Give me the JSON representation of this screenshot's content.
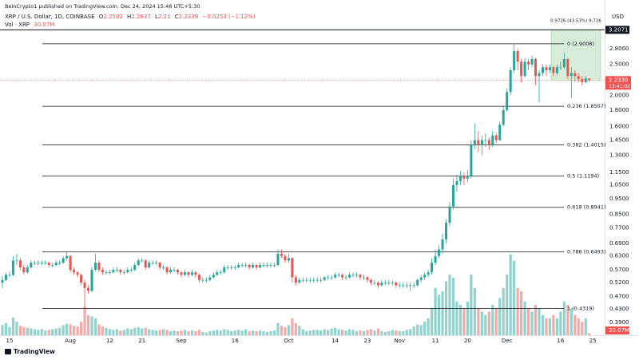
{
  "header": {
    "publisher": "BeInCrypto1 published on TradingView.com, Dec 24, 2024 15:48 UTC+5:30",
    "brand": "TradingView"
  },
  "chart_data": {
    "type": "candlestick",
    "symbol": "XRP / U.S. Dollar, 1D, COINBASE",
    "ohlc_labels": [
      "O",
      "H",
      "L",
      "C"
    ],
    "change": "−0.0253 (−1.12%)",
    "currency": "USD",
    "countdown": "13:41:02",
    "log_scale": true,
    "grid": false,
    "up_color": "#26a69a",
    "down_color": "#ef5350",
    "ylim": [
      0.356,
      3.385
    ],
    "yticks": [
      {
        "value": 2.8,
        "label": "2.8000"
      },
      {
        "value": 2.5,
        "label": "2.5000"
      },
      {
        "value": 2.0,
        "label": "2.0000"
      },
      {
        "value": 1.8,
        "label": "1.8000"
      },
      {
        "value": 1.6,
        "label": "1.6000"
      },
      {
        "value": 1.45,
        "label": "1.4500"
      },
      {
        "value": 1.3,
        "label": "1.3000"
      },
      {
        "value": 1.15,
        "label": "1.1500"
      },
      {
        "value": 1.05,
        "label": "1.0500"
      },
      {
        "value": 0.95,
        "label": "0.9500"
      },
      {
        "value": 0.85,
        "label": "0.8500"
      },
      {
        "value": 0.77,
        "label": "0.7700"
      },
      {
        "value": 0.69,
        "label": "0.6900"
      },
      {
        "value": 0.63,
        "label": "0.6300"
      },
      {
        "value": 0.57,
        "label": "0.5700"
      },
      {
        "value": 0.52,
        "label": "0.5200"
      },
      {
        "value": 0.47,
        "label": "0.4700"
      },
      {
        "value": 0.43,
        "label": "0.4300"
      },
      {
        "value": 0.39,
        "label": "0.3900"
      }
    ],
    "fib_levels": [
      {
        "value": 2.9008,
        "label": "0 (2.9008)"
      },
      {
        "value": 1.8507,
        "label": "0.236 (1.8507)"
      },
      {
        "value": 1.4015,
        "label": "0.382 (1.4015)"
      },
      {
        "value": 1.1194,
        "label": "0.5 (1.1194)"
      },
      {
        "value": 0.8941,
        "label": "0.618 (0.8941)"
      },
      {
        "value": 0.6493,
        "label": "0.786 (0.6493)"
      },
      {
        "value": 0.4319,
        "label": "1 (0.4319)"
      }
    ],
    "measure": {
      "top": 3.2071,
      "bottom": 2.2345,
      "label": "0.9726 (43.53%) 9,726"
    },
    "categories": [
      null,
      null,
      "15",
      null,
      null,
      null,
      null,
      null,
      null,
      null,
      null,
      null,
      null,
      null,
      null,
      null,
      null,
      null,
      null,
      "Aug",
      null,
      null,
      null,
      null,
      null,
      null,
      null,
      null,
      null,
      null,
      "12",
      null,
      null,
      null,
      null,
      null,
      null,
      null,
      null,
      "21",
      null,
      null,
      null,
      null,
      null,
      null,
      null,
      null,
      null,
      null,
      "Sep",
      null,
      null,
      null,
      null,
      null,
      null,
      null,
      null,
      null,
      null,
      null,
      null,
      null,
      null,
      "16",
      null,
      null,
      null,
      null,
      null,
      null,
      null,
      null,
      null,
      null,
      null,
      null,
      null,
      null,
      "Oct",
      null,
      null,
      null,
      null,
      null,
      null,
      null,
      null,
      null,
      null,
      null,
      null,
      "14",
      null,
      null,
      null,
      null,
      null,
      null,
      null,
      null,
      "23",
      null,
      null,
      null,
      null,
      null,
      null,
      null,
      null,
      "Nov",
      null,
      null,
      null,
      null,
      null,
      null,
      null,
      null,
      null,
      "11",
      null,
      null,
      null,
      null,
      null,
      null,
      null,
      null,
      "20",
      null,
      null,
      null,
      null,
      null,
      null,
      null,
      null,
      null,
      null,
      "Dec",
      null,
      null,
      null,
      null,
      null,
      null,
      null,
      null,
      null,
      null,
      null,
      null,
      null,
      null,
      "16",
      null,
      null,
      null,
      null,
      null,
      null,
      null,
      null,
      "25"
    ],
    "candles": [
      [
        0.52,
        0.545,
        0.5,
        0.53
      ],
      [
        0.53,
        0.56,
        0.525,
        0.55
      ],
      [
        0.55,
        0.565,
        0.54,
        0.55
      ],
      [
        0.55,
        0.63,
        0.545,
        0.61
      ],
      [
        0.61,
        0.64,
        0.59,
        0.61
      ],
      [
        0.61,
        0.62,
        0.57,
        0.58
      ],
      [
        0.58,
        0.59,
        0.55,
        0.56
      ],
      [
        0.56,
        0.59,
        0.555,
        0.58
      ],
      [
        0.58,
        0.61,
        0.575,
        0.6
      ],
      [
        0.6,
        0.61,
        0.59,
        0.6
      ],
      [
        0.6,
        0.61,
        0.59,
        0.6
      ],
      [
        0.6,
        0.61,
        0.59,
        0.6
      ],
      [
        0.6,
        0.61,
        0.59,
        0.6
      ],
      [
        0.6,
        0.605,
        0.58,
        0.59
      ],
      [
        0.59,
        0.6,
        0.58,
        0.59
      ],
      [
        0.59,
        0.61,
        0.585,
        0.6
      ],
      [
        0.6,
        0.61,
        0.59,
        0.6
      ],
      [
        0.6,
        0.63,
        0.595,
        0.62
      ],
      [
        0.62,
        0.65,
        0.61,
        0.63
      ],
      [
        0.63,
        0.635,
        0.56,
        0.57
      ],
      [
        0.57,
        0.58,
        0.55,
        0.56
      ],
      [
        0.56,
        0.565,
        0.54,
        0.55
      ],
      [
        0.55,
        0.555,
        0.51,
        0.52
      ],
      [
        0.52,
        0.53,
        0.43,
        0.5
      ],
      [
        0.5,
        0.51,
        0.48,
        0.49
      ],
      [
        0.49,
        0.58,
        0.485,
        0.57
      ],
      [
        0.57,
        0.64,
        0.565,
        0.6
      ],
      [
        0.6,
        0.61,
        0.56,
        0.57
      ],
      [
        0.57,
        0.58,
        0.55,
        0.56
      ],
      [
        0.56,
        0.57,
        0.55,
        0.56
      ],
      [
        0.56,
        0.57,
        0.55,
        0.56
      ],
      [
        0.56,
        0.58,
        0.555,
        0.57
      ],
      [
        0.57,
        0.58,
        0.56,
        0.57
      ],
      [
        0.57,
        0.575,
        0.55,
        0.56
      ],
      [
        0.56,
        0.57,
        0.55,
        0.56
      ],
      [
        0.56,
        0.58,
        0.555,
        0.57
      ],
      [
        0.57,
        0.58,
        0.56,
        0.57
      ],
      [
        0.57,
        0.6,
        0.565,
        0.59
      ],
      [
        0.59,
        0.62,
        0.585,
        0.61
      ],
      [
        0.61,
        0.62,
        0.6,
        0.61
      ],
      [
        0.61,
        0.615,
        0.57,
        0.58
      ],
      [
        0.58,
        0.61,
        0.575,
        0.6
      ],
      [
        0.6,
        0.61,
        0.59,
        0.6
      ],
      [
        0.6,
        0.61,
        0.59,
        0.6
      ],
      [
        0.6,
        0.605,
        0.57,
        0.58
      ],
      [
        0.58,
        0.59,
        0.57,
        0.58
      ],
      [
        0.58,
        0.585,
        0.55,
        0.56
      ],
      [
        0.56,
        0.58,
        0.555,
        0.57
      ],
      [
        0.57,
        0.58,
        0.56,
        0.57
      ],
      [
        0.57,
        0.575,
        0.55,
        0.56
      ],
      [
        0.56,
        0.565,
        0.54,
        0.55
      ],
      [
        0.55,
        0.57,
        0.545,
        0.56
      ],
      [
        0.56,
        0.565,
        0.54,
        0.55
      ],
      [
        0.55,
        0.57,
        0.545,
        0.56
      ],
      [
        0.56,
        0.565,
        0.54,
        0.55
      ],
      [
        0.55,
        0.555,
        0.52,
        0.53
      ],
      [
        0.53,
        0.54,
        0.52,
        0.53
      ],
      [
        0.53,
        0.54,
        0.52,
        0.53
      ],
      [
        0.53,
        0.55,
        0.525,
        0.54
      ],
      [
        0.54,
        0.56,
        0.535,
        0.55
      ],
      [
        0.55,
        0.57,
        0.545,
        0.56
      ],
      [
        0.56,
        0.57,
        0.55,
        0.56
      ],
      [
        0.56,
        0.59,
        0.555,
        0.58
      ],
      [
        0.58,
        0.59,
        0.57,
        0.58
      ],
      [
        0.58,
        0.59,
        0.57,
        0.58
      ],
      [
        0.58,
        0.59,
        0.57,
        0.58
      ],
      [
        0.58,
        0.6,
        0.575,
        0.59
      ],
      [
        0.59,
        0.6,
        0.58,
        0.59
      ],
      [
        0.59,
        0.6,
        0.58,
        0.59
      ],
      [
        0.59,
        0.595,
        0.57,
        0.58
      ],
      [
        0.58,
        0.6,
        0.575,
        0.59
      ],
      [
        0.59,
        0.595,
        0.57,
        0.58
      ],
      [
        0.58,
        0.6,
        0.575,
        0.59
      ],
      [
        0.59,
        0.6,
        0.58,
        0.59
      ],
      [
        0.59,
        0.6,
        0.58,
        0.59
      ],
      [
        0.59,
        0.6,
        0.58,
        0.59
      ],
      [
        0.59,
        0.6,
        0.58,
        0.59
      ],
      [
        0.59,
        0.66,
        0.585,
        0.64
      ],
      [
        0.64,
        0.66,
        0.62,
        0.63
      ],
      [
        0.63,
        0.64,
        0.6,
        0.61
      ],
      [
        0.61,
        0.64,
        0.6,
        0.62
      ],
      [
        0.62,
        0.625,
        0.52,
        0.54
      ],
      [
        0.54,
        0.55,
        0.51,
        0.52
      ],
      [
        0.52,
        0.54,
        0.515,
        0.53
      ],
      [
        0.53,
        0.54,
        0.52,
        0.53
      ],
      [
        0.53,
        0.54,
        0.52,
        0.53
      ],
      [
        0.53,
        0.54,
        0.52,
        0.53
      ],
      [
        0.53,
        0.54,
        0.52,
        0.53
      ],
      [
        0.53,
        0.54,
        0.52,
        0.53
      ],
      [
        0.53,
        0.54,
        0.52,
        0.53
      ],
      [
        0.53,
        0.545,
        0.525,
        0.54
      ],
      [
        0.54,
        0.55,
        0.53,
        0.54
      ],
      [
        0.54,
        0.55,
        0.53,
        0.54
      ],
      [
        0.54,
        0.56,
        0.535,
        0.55
      ],
      [
        0.55,
        0.56,
        0.54,
        0.55
      ],
      [
        0.55,
        0.555,
        0.53,
        0.54
      ],
      [
        0.54,
        0.55,
        0.53,
        0.54
      ],
      [
        0.54,
        0.56,
        0.535,
        0.55
      ],
      [
        0.55,
        0.56,
        0.54,
        0.55
      ],
      [
        0.55,
        0.56,
        0.54,
        0.55
      ],
      [
        0.55,
        0.555,
        0.53,
        0.54
      ],
      [
        0.54,
        0.55,
        0.53,
        0.54
      ],
      [
        0.54,
        0.545,
        0.52,
        0.53
      ],
      [
        0.53,
        0.535,
        0.51,
        0.52
      ],
      [
        0.52,
        0.53,
        0.51,
        0.52
      ],
      [
        0.52,
        0.525,
        0.5,
        0.51
      ],
      [
        0.51,
        0.53,
        0.505,
        0.52
      ],
      [
        0.52,
        0.53,
        0.51,
        0.52
      ],
      [
        0.52,
        0.53,
        0.51,
        0.52
      ],
      [
        0.52,
        0.53,
        0.51,
        0.52
      ],
      [
        0.52,
        0.525,
        0.5,
        0.51
      ],
      [
        0.51,
        0.52,
        0.5,
        0.51
      ],
      [
        0.51,
        0.52,
        0.5,
        0.51
      ],
      [
        0.51,
        0.52,
        0.5,
        0.51
      ],
      [
        0.51,
        0.52,
        0.49,
        0.51
      ],
      [
        0.51,
        0.52,
        0.5,
        0.51
      ],
      [
        0.51,
        0.535,
        0.505,
        0.53
      ],
      [
        0.53,
        0.55,
        0.52,
        0.54
      ],
      [
        0.54,
        0.56,
        0.53,
        0.55
      ],
      [
        0.55,
        0.57,
        0.54,
        0.56
      ],
      [
        0.56,
        0.62,
        0.55,
        0.6
      ],
      [
        0.6,
        0.66,
        0.59,
        0.63
      ],
      [
        0.63,
        0.68,
        0.62,
        0.66
      ],
      [
        0.66,
        0.74,
        0.64,
        0.71
      ],
      [
        0.71,
        0.82,
        0.69,
        0.8
      ],
      [
        0.8,
        0.93,
        0.78,
        0.9
      ],
      [
        0.9,
        1.1,
        0.88,
        1.05
      ],
      [
        1.05,
        1.13,
        1.0,
        1.08
      ],
      [
        1.08,
        1.16,
        1.05,
        1.12
      ],
      [
        1.12,
        1.15,
        1.05,
        1.1
      ],
      [
        1.1,
        1.17,
        1.07,
        1.12
      ],
      [
        1.12,
        1.45,
        1.1,
        1.4
      ],
      [
        1.4,
        1.63,
        1.36,
        1.45
      ],
      [
        1.45,
        1.55,
        1.33,
        1.4
      ],
      [
        1.4,
        1.5,
        1.3,
        1.45
      ],
      [
        1.45,
        1.52,
        1.38,
        1.45
      ],
      [
        1.45,
        1.48,
        1.35,
        1.4
      ],
      [
        1.4,
        1.55,
        1.38,
        1.5
      ],
      [
        1.5,
        1.53,
        1.42,
        1.45
      ],
      [
        1.45,
        1.66,
        1.44,
        1.62
      ],
      [
        1.62,
        1.85,
        1.6,
        1.8
      ],
      [
        1.8,
        2.1,
        1.78,
        2.05
      ],
      [
        2.05,
        2.45,
        2.0,
        2.4
      ],
      [
        2.4,
        2.9,
        2.35,
        2.75
      ],
      [
        2.75,
        2.8,
        2.4,
        2.55
      ],
      [
        2.55,
        2.6,
        2.2,
        2.3
      ],
      [
        2.3,
        2.62,
        2.28,
        2.55
      ],
      [
        2.55,
        2.6,
        2.4,
        2.5
      ],
      [
        2.5,
        2.66,
        2.45,
        2.6
      ],
      [
        2.6,
        2.62,
        2.15,
        2.3
      ],
      [
        2.3,
        2.4,
        1.9,
        2.35
      ],
      [
        2.35,
        2.5,
        2.3,
        2.45
      ],
      [
        2.45,
        2.5,
        2.3,
        2.4
      ],
      [
        2.4,
        2.5,
        2.35,
        2.45
      ],
      [
        2.45,
        2.48,
        2.3,
        2.35
      ],
      [
        2.35,
        2.5,
        2.32,
        2.45
      ],
      [
        2.45,
        2.55,
        2.4,
        2.45
      ],
      [
        2.45,
        2.72,
        2.42,
        2.6
      ],
      [
        2.6,
        2.62,
        2.25,
        2.3
      ],
      [
        2.3,
        2.45,
        1.96,
        2.35
      ],
      [
        2.35,
        2.4,
        2.2,
        2.3
      ],
      [
        2.3,
        2.35,
        2.2,
        2.25
      ],
      [
        2.25,
        2.3,
        2.15,
        2.2
      ],
      [
        2.2,
        2.3,
        2.18,
        2.2592
      ],
      [
        2.2592,
        2.2637,
        2.21,
        2.2339
      ],
      null
    ],
    "volume": {
      "name": "Vol · XRP",
      "last_label": "30.07M",
      "vlim": [
        0,
        1300
      ],
      "values": [
        150,
        180,
        120,
        260,
        200,
        140,
        120,
        110,
        100,
        90,
        80,
        90,
        70,
        80,
        90,
        100,
        110,
        150,
        170,
        160,
        140,
        130,
        200,
        420,
        300,
        280,
        250,
        160,
        130,
        110,
        90,
        80,
        90,
        70,
        80,
        100,
        90,
        110,
        120,
        100,
        110,
        90,
        80,
        70,
        80,
        90,
        80,
        60,
        70,
        60,
        70,
        80,
        60,
        70,
        60,
        80,
        50,
        40,
        60,
        70,
        80,
        70,
        90,
        80,
        60,
        70,
        80,
        70,
        90,
        60,
        70,
        60,
        70,
        60,
        50,
        60,
        70,
        180,
        140,
        120,
        150,
        250,
        180,
        140,
        90,
        60,
        70,
        80,
        80,
        70,
        90,
        80,
        100,
        110,
        90,
        80,
        70,
        90,
        80,
        60,
        70,
        60,
        80,
        90,
        70,
        100,
        60,
        50,
        60,
        80,
        70,
        60,
        60,
        80,
        90,
        130,
        160,
        150,
        200,
        250,
        400,
        700,
        600,
        650,
        800,
        900,
        850,
        500,
        450,
        400,
        500,
        900,
        700,
        400,
        350,
        300,
        350,
        450,
        400,
        550,
        700,
        900,
        1200,
        1100,
        700,
        650,
        500,
        400,
        350,
        450,
        400,
        300,
        250,
        250,
        300,
        250,
        350,
        500,
        450,
        400,
        300,
        250,
        200,
        250,
        30.07,
        null
      ]
    }
  }
}
